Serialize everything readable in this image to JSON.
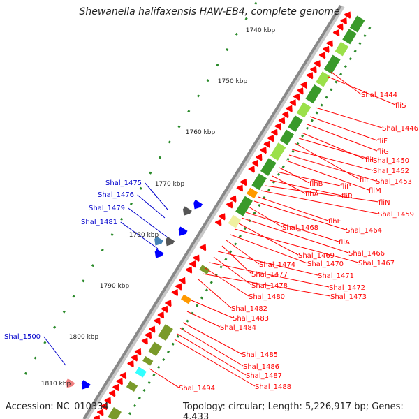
{
  "title": "Shewanella halifaxensis HAW-EB4, complete genome",
  "footer": {
    "accession": "Accession: NC_010334",
    "summary": "Topology: circular; Length: 5,226,917 bp; Genes: 4,433"
  },
  "colors": {
    "backbone": "#888888",
    "forward_gene": "#ff0000",
    "label_red": "#ff0000",
    "label_blue": "#0000cc",
    "gene_blue": "#0000ff",
    "cds_green_dark": "#3a9a2a",
    "cds_green_light": "#9be04a",
    "cds_olive": "#7a9a2a",
    "cds_orange": "#ff9900",
    "cds_cyan": "#33ffff",
    "cds_pink": "#f08080",
    "cds_steelblue": "#4682b4",
    "ticks_green": "#2a8a2a"
  },
  "scale_labels": [
    "1740 kbp",
    "1750 kbp",
    "1760 kbp",
    "1770 kbp",
    "1780 kbp",
    "1790 kbp",
    "1800 kbp",
    "1810 kbp"
  ],
  "labels_right": [
    "Shal_1444",
    "fliS",
    "Shal_1446",
    "fliF",
    "fliG",
    "fliI",
    "Shal_1450",
    "fliL",
    "Shal_1452",
    "Shal_1453",
    "fliM",
    "flhB",
    "fliP",
    "flhA",
    "fliR",
    "fliN",
    "Shal_1459",
    "flhF",
    "Shal_1464",
    "Shal_1468",
    "fliA",
    "Shal_1466",
    "Shal_1469",
    "Shal_1467",
    "Shal_1470",
    "Shal_1474",
    "Shal_1477",
    "Shal_1471",
    "Shal_1478",
    "Shal_1472",
    "Shal_1480",
    "Shal_1473",
    "Shal_1482",
    "Shal_1483",
    "Shal_1484",
    "Shal_1485",
    "Shal_1486",
    "Shal_1487",
    "Shal_1488",
    "Shal_1494"
  ],
  "labels_left": [
    "Shal_1475",
    "Shal_1476",
    "Shal_1479",
    "Shal_1481",
    "Shal_1500"
  ]
}
